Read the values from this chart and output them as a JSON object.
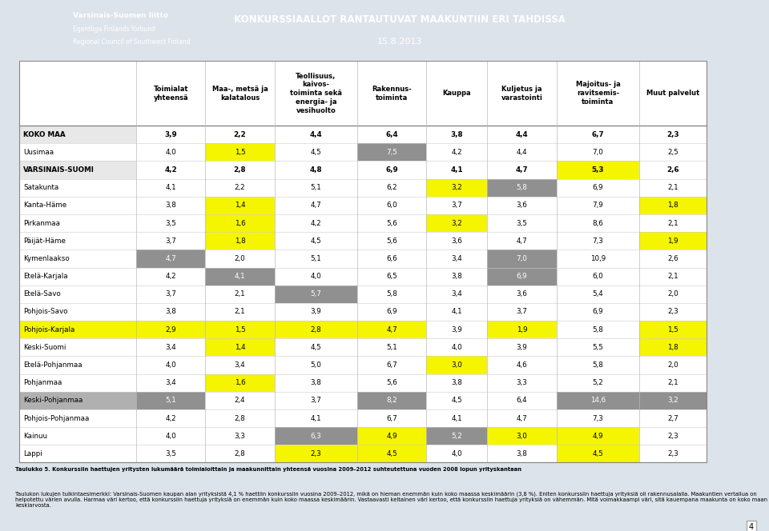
{
  "header_bg": "#8da0b3",
  "title_text": "KONKURSSIAALLOT RANTAUTUVAT MAAKUNTIIN ERI TAHDISSA",
  "subtitle_text": "15.8.2013",
  "col_headers": [
    "Toimialat\nyhteensä",
    "Maa-, metsä ja\nkalatalous",
    "Teollisuus,\nkaivos-\ntoiminta sekä\nenergia- ja\nvesihuolto",
    "Rakennus-\ntoiminta",
    "Kauppa",
    "Kuljetus ja\nvarastointi",
    "Majoitus- ja\nravitsemis-\ntoiminta",
    "Muut palvelut"
  ],
  "rows": [
    {
      "name": "KOKO MAA",
      "bold": true,
      "values": [
        "3,9",
        "2,2",
        "4,4",
        "6,4",
        "3,8",
        "4,4",
        "6,7",
        "2,3"
      ],
      "cell_colors": [
        "w",
        "w",
        "w",
        "w",
        "w",
        "w",
        "w",
        "w"
      ],
      "name_bg": "#e8e8e8"
    },
    {
      "name": "Uusimaa",
      "bold": false,
      "values": [
        "4,0",
        "1,5",
        "4,5",
        "7,5",
        "4,2",
        "4,4",
        "7,0",
        "2,5"
      ],
      "cell_colors": [
        "w",
        "yellow",
        "w",
        "gray",
        "w",
        "w",
        "w",
        "w"
      ],
      "name_bg": "w"
    },
    {
      "name": "VARSINAIS-SUOMI",
      "bold": true,
      "values": [
        "4,2",
        "2,8",
        "4,8",
        "6,9",
        "4,1",
        "4,7",
        "5,3",
        "2,6"
      ],
      "cell_colors": [
        "w",
        "w",
        "w",
        "w",
        "w",
        "w",
        "yellow",
        "w"
      ],
      "name_bg": "#e8e8e8"
    },
    {
      "name": "Satakunta",
      "bold": false,
      "values": [
        "4,1",
        "2,2",
        "5,1",
        "6,2",
        "3,2",
        "5,8",
        "6,9",
        "2,1"
      ],
      "cell_colors": [
        "w",
        "w",
        "w",
        "w",
        "yellow",
        "gray",
        "w",
        "w"
      ],
      "name_bg": "w"
    },
    {
      "name": "Kanta-Häme",
      "bold": false,
      "values": [
        "3,8",
        "1,4",
        "4,7",
        "6,0",
        "3,7",
        "3,6",
        "7,9",
        "1,8"
      ],
      "cell_colors": [
        "w",
        "yellow",
        "w",
        "w",
        "w",
        "w",
        "w",
        "yellow"
      ],
      "name_bg": "w"
    },
    {
      "name": "Pirkanmaa",
      "bold": false,
      "values": [
        "3,5",
        "1,6",
        "4,2",
        "5,6",
        "3,2",
        "3,5",
        "8,6",
        "2,1"
      ],
      "cell_colors": [
        "w",
        "yellow",
        "w",
        "w",
        "yellow",
        "w",
        "w",
        "w"
      ],
      "name_bg": "w"
    },
    {
      "name": "Päijät-Häme",
      "bold": false,
      "values": [
        "3,7",
        "1,8",
        "4,5",
        "5,6",
        "3,6",
        "4,7",
        "7,3",
        "1,9"
      ],
      "cell_colors": [
        "w",
        "yellow",
        "w",
        "w",
        "w",
        "w",
        "w",
        "yellow"
      ],
      "name_bg": "w"
    },
    {
      "name": "Kymenlaakso",
      "bold": false,
      "values": [
        "4,7",
        "2,0",
        "5,1",
        "6,6",
        "3,4",
        "7,0",
        "10,9",
        "2,6"
      ],
      "cell_colors": [
        "gray",
        "w",
        "w",
        "w",
        "w",
        "gray",
        "w",
        "w"
      ],
      "name_bg": "w"
    },
    {
      "name": "Etelä-Karjala",
      "bold": false,
      "values": [
        "4,2",
        "4,1",
        "4,0",
        "6,5",
        "3,8",
        "6,9",
        "6,0",
        "2,1"
      ],
      "cell_colors": [
        "w",
        "gray",
        "w",
        "w",
        "w",
        "gray",
        "w",
        "w"
      ],
      "name_bg": "w"
    },
    {
      "name": "Etelä-Savo",
      "bold": false,
      "values": [
        "3,7",
        "2,1",
        "5,7",
        "5,8",
        "3,4",
        "3,6",
        "5,4",
        "2,0"
      ],
      "cell_colors": [
        "w",
        "w",
        "gray",
        "w",
        "w",
        "w",
        "w",
        "w"
      ],
      "name_bg": "w"
    },
    {
      "name": "Pohjois-Savo",
      "bold": false,
      "values": [
        "3,8",
        "2,1",
        "3,9",
        "6,9",
        "4,1",
        "3,7",
        "6,9",
        "2,3"
      ],
      "cell_colors": [
        "w",
        "w",
        "w",
        "w",
        "w",
        "w",
        "w",
        "w"
      ],
      "name_bg": "w"
    },
    {
      "name": "Pohjois-Karjala",
      "bold": false,
      "values": [
        "2,9",
        "1,5",
        "2,8",
        "4,7",
        "3,9",
        "1,9",
        "5,8",
        "1,5"
      ],
      "cell_colors": [
        "yellow",
        "yellow",
        "yellow",
        "yellow",
        "w",
        "yellow",
        "w",
        "yellow"
      ],
      "name_bg": "#f5f500"
    },
    {
      "name": "Keski-Suomi",
      "bold": false,
      "values": [
        "3,4",
        "1,4",
        "4,5",
        "5,1",
        "4,0",
        "3,9",
        "5,5",
        "1,8"
      ],
      "cell_colors": [
        "w",
        "yellow",
        "w",
        "w",
        "w",
        "w",
        "w",
        "yellow"
      ],
      "name_bg": "w"
    },
    {
      "name": "Etelä-Pohjanmaa",
      "bold": false,
      "values": [
        "4,0",
        "3,4",
        "5,0",
        "6,7",
        "3,0",
        "4,6",
        "5,8",
        "2,0"
      ],
      "cell_colors": [
        "w",
        "w",
        "w",
        "w",
        "yellow",
        "w",
        "w",
        "w"
      ],
      "name_bg": "w"
    },
    {
      "name": "Pohjanmaa",
      "bold": false,
      "values": [
        "3,4",
        "1,6",
        "3,8",
        "5,6",
        "3,8",
        "3,3",
        "5,2",
        "2,1"
      ],
      "cell_colors": [
        "w",
        "yellow",
        "w",
        "w",
        "w",
        "w",
        "w",
        "w"
      ],
      "name_bg": "w"
    },
    {
      "name": "Keski-Pohjanmaa",
      "bold": false,
      "values": [
        "5,1",
        "2,4",
        "3,7",
        "8,2",
        "4,5",
        "6,4",
        "14,6",
        "3,2"
      ],
      "cell_colors": [
        "gray",
        "w",
        "w",
        "gray",
        "w",
        "w",
        "gray",
        "gray"
      ],
      "name_bg": "#b0b0b0"
    },
    {
      "name": "Pohjois-Pohjanmaa",
      "bold": false,
      "values": [
        "4,2",
        "2,8",
        "4,1",
        "6,7",
        "4,1",
        "4,7",
        "7,3",
        "2,7"
      ],
      "cell_colors": [
        "w",
        "w",
        "w",
        "w",
        "w",
        "w",
        "w",
        "w"
      ],
      "name_bg": "w"
    },
    {
      "name": "Kainuu",
      "bold": false,
      "values": [
        "4,0",
        "3,3",
        "6,3",
        "4,9",
        "5,2",
        "3,0",
        "4,9",
        "2,3"
      ],
      "cell_colors": [
        "w",
        "w",
        "gray",
        "yellow",
        "gray",
        "yellow",
        "yellow",
        "w"
      ],
      "name_bg": "w"
    },
    {
      "name": "Lappi",
      "bold": false,
      "values": [
        "3,5",
        "2,8",
        "2,3",
        "4,5",
        "4,0",
        "3,8",
        "4,5",
        "2,3"
      ],
      "cell_colors": [
        "w",
        "w",
        "yellow",
        "yellow",
        "w",
        "w",
        "yellow",
        "w"
      ],
      "name_bg": "w"
    }
  ],
  "caption_bold": "Taulukko 5. Konkurssiin haettujen yritysten lukumäärä toimialoittain ja maakunnittain yhteensä vuosina 2009–2012 suhteutettuna vuoden 2008 lopun yrityskantaan",
  "caption_normal": "Taulukon lukujen tulkintaesimerkki: Varsinais-Suomen kaupan alan yrityksistä 4,1 % haettiin konkurssiin vuosina 2009–2012, mikä on hieman enemmän kuin koko maassa keskimäärin (3,8 %). Eniten konkurssiin haettuja yrityksiä oli rakennusalalla. Maakuntien vertailua on helpotettu värien avulla. Harmaa väri kertoo, että konkurssiin haettuja yrityksiä on enemmän kuin koko maassa keskimäärin. Vastaavasti keltainen väri kertoo, että konkurssiin haettuja yrityksiä on vähemmän. Mitä voimakkaampi väri, sitä kauempana maakunta on koko maan keskiarvosta.",
  "yellow_color": "#f5f500",
  "gray_color": "#909090",
  "white": "#ffffff",
  "page_bg": "#dde3ea",
  "header_bar_bg": "#8da0b3"
}
